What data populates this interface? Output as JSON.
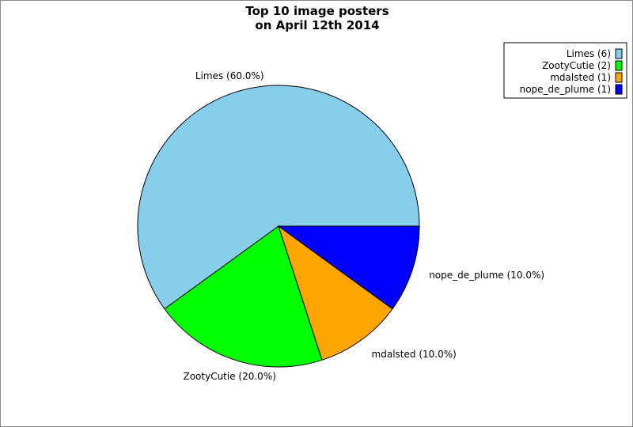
{
  "chart_data": {
    "type": "pie",
    "title": [
      "Top 10 image posters",
      "on April 12th 2014"
    ],
    "slices": [
      {
        "name": "Limes",
        "value": 6,
        "percent": 60.0,
        "color": "#87ceeb",
        "label": "Limes (60.0%)",
        "legend": "Limes (6)"
      },
      {
        "name": "ZootyCutie",
        "value": 2,
        "percent": 20.0,
        "color": "#00ff00",
        "label": "ZootyCutie (20.0%)",
        "legend": "ZootyCutie (2)"
      },
      {
        "name": "mdalsted",
        "value": 1,
        "percent": 10.0,
        "color": "#ffa500",
        "label": "mdalsted (10.0%)",
        "legend": "mdalsted (1)"
      },
      {
        "name": "nope_de_plume",
        "value": 1,
        "percent": 10.0,
        "color": "#0000ff",
        "label": "nope_de_plume (10.0%)",
        "legend": "nope_de_plume (1)"
      }
    ],
    "start_angle_deg": 0,
    "direction": "counterclockwise",
    "legend_position": "top-right"
  }
}
